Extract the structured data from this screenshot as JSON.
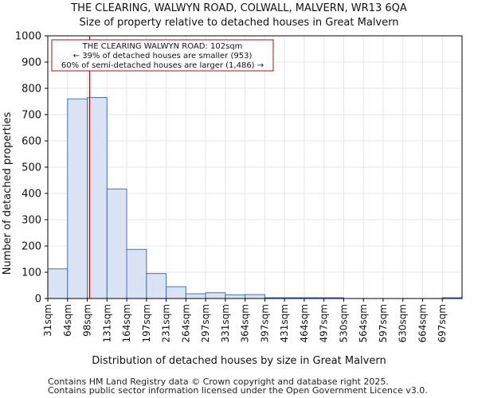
{
  "chart_data": {
    "type": "bar",
    "title": "THE CLEARING, WALWYN ROAD, COLWALL, MALVERN, WR13 6QA",
    "subtitle": "Size of property relative to detached houses in Great Malvern",
    "xlabel": "Distribution of detached houses by size in Great Malvern",
    "ylabel": "Number of detached properties",
    "ylim": [
      0,
      1000
    ],
    "yticks": [
      0,
      100,
      200,
      300,
      400,
      500,
      600,
      700,
      800,
      900,
      1000
    ],
    "bin_edges": [
      "31sqm",
      "64sqm",
      "98sqm",
      "131sqm",
      "164sqm",
      "197sqm",
      "231sqm",
      "264sqm",
      "297sqm",
      "331sqm",
      "364sqm",
      "397sqm",
      "431sqm",
      "464sqm",
      "497sqm",
      "530sqm",
      "564sqm",
      "597sqm",
      "630sqm",
      "664sqm",
      "697sqm"
    ],
    "values": [
      113,
      760,
      765,
      417,
      187,
      95,
      45,
      18,
      22,
      14,
      15,
      3,
      3,
      3,
      3,
      0,
      0,
      0,
      0,
      0,
      3
    ],
    "property_marker_sqm": 102,
    "annotation": {
      "line1": "THE CLEARING WALWYN ROAD: 102sqm",
      "line2": "← 39% of detached houses are smaller (953)",
      "line3": "60% of semi-detached houses are larger (1,486) →"
    },
    "colors": {
      "bar_fill": "#dae3f3",
      "bar_edge": "#4472c4",
      "marker": "#a50f15"
    }
  },
  "footer": {
    "line1": "Contains HM Land Registry data © Crown copyright and database right 2025.",
    "line2": "Contains public sector information licensed under the Open Government Licence v3.0."
  }
}
